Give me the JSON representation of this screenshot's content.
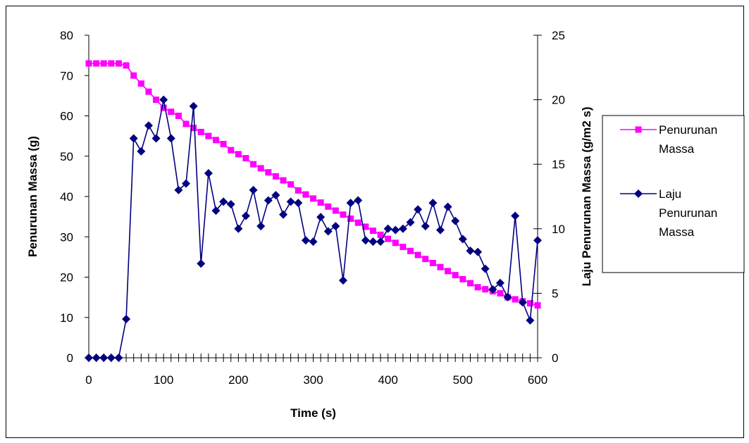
{
  "chart_data": {
    "type": "line",
    "title": "",
    "xlabel": "Time (s)",
    "ylabel": "Penurunan Massa (g)",
    "y2label": "Laju Penurunan Massa (g/m2 s)",
    "xlim": [
      0,
      600
    ],
    "ylim": [
      0,
      80
    ],
    "y2lim": [
      0,
      25
    ],
    "xticks": [
      "0",
      "100",
      "200",
      "300",
      "400",
      "500",
      "600"
    ],
    "yticks": [
      "0",
      "10",
      "20",
      "30",
      "40",
      "50",
      "60",
      "70",
      "80"
    ],
    "y2ticks": [
      "0",
      "5",
      "10",
      "15",
      "20",
      "25"
    ],
    "grid": false,
    "legend_position": "right",
    "series": [
      {
        "name": "Penurunan Massa",
        "axis": "left",
        "color": "#ff00ff",
        "marker": "square",
        "x": [
          0,
          10,
          20,
          30,
          40,
          50,
          60,
          70,
          80,
          90,
          100,
          110,
          120,
          130,
          140,
          150,
          160,
          170,
          180,
          190,
          200,
          210,
          220,
          230,
          240,
          250,
          260,
          270,
          280,
          290,
          300,
          310,
          320,
          330,
          340,
          350,
          360,
          370,
          380,
          390,
          400,
          410,
          420,
          430,
          440,
          450,
          460,
          470,
          480,
          490,
          500,
          510,
          520,
          530,
          540,
          550,
          560,
          570,
          580,
          590,
          600
        ],
        "y": [
          73,
          73,
          73,
          73,
          73,
          72.5,
          70,
          68,
          66,
          64,
          62,
          61,
          60,
          58,
          57,
          56,
          55,
          54,
          53,
          51.5,
          50.5,
          49.5,
          48,
          47,
          46,
          45,
          44,
          43,
          41.5,
          40.5,
          39.5,
          38.5,
          37.5,
          36.5,
          35.5,
          34.5,
          33.5,
          32.5,
          31.5,
          30.5,
          29.5,
          28.5,
          27.5,
          26.5,
          25.5,
          24.5,
          23.5,
          22.5,
          21.5,
          20.5,
          19.5,
          18.5,
          17.5,
          17,
          16.5,
          16,
          15,
          14.5,
          14,
          13.5,
          13
        ]
      },
      {
        "name": "Laju Penurunan Massa",
        "axis": "right",
        "color": "#000080",
        "marker": "diamond",
        "x": [
          0,
          10,
          20,
          30,
          40,
          50,
          60,
          70,
          80,
          90,
          100,
          110,
          120,
          130,
          140,
          150,
          160,
          170,
          180,
          190,
          200,
          210,
          220,
          230,
          240,
          250,
          260,
          270,
          280,
          290,
          300,
          310,
          320,
          330,
          340,
          350,
          360,
          370,
          380,
          390,
          400,
          410,
          420,
          430,
          440,
          450,
          460,
          470,
          480,
          490,
          500,
          510,
          520,
          530,
          540,
          550,
          560,
          570,
          580,
          590,
          600
        ],
        "y": [
          0,
          0,
          0,
          0,
          0,
          3,
          17,
          16,
          18,
          17,
          20,
          17,
          13,
          13.5,
          19.5,
          7.3,
          14.3,
          11.4,
          12.1,
          11.9,
          10,
          11,
          13,
          10.2,
          12.2,
          12.6,
          11.1,
          12.1,
          12,
          9.1,
          9,
          10.9,
          9.8,
          10.2,
          6,
          12,
          12.2,
          9.1,
          9,
          9,
          10,
          9.9,
          10,
          10.5,
          11.5,
          10.2,
          12,
          9.9,
          11.7,
          10.6,
          9.2,
          8.3,
          8.2,
          6.9,
          5.3,
          5.8,
          4.7,
          11,
          4.3,
          2.9,
          9.1
        ]
      }
    ]
  }
}
